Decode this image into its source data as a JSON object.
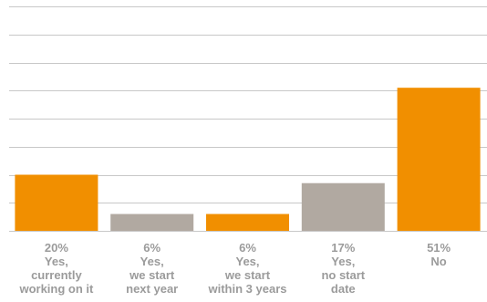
{
  "chart_data": {
    "type": "bar",
    "title": "",
    "xlabel": "",
    "ylabel": "",
    "ylim": [
      0,
      80
    ],
    "grid": true,
    "categories": [
      [
        "20%",
        "Yes,",
        "currently",
        "working on it"
      ],
      [
        "6%",
        "Yes,",
        "we start",
        "next year"
      ],
      [
        "6%",
        "Yes,",
        "we start",
        "within 3 years"
      ],
      [
        "17%",
        "Yes,",
        "no start",
        "date"
      ],
      [
        "51%",
        "No"
      ]
    ],
    "values": [
      20,
      6,
      6,
      17,
      51
    ],
    "bar_colors": [
      "#f18f00",
      "#b1a9a1",
      "#f18f00",
      "#b1a9a1",
      "#f18f00"
    ],
    "gridline_color": "#c8c8c8",
    "label_color": "#9b9b9b"
  }
}
